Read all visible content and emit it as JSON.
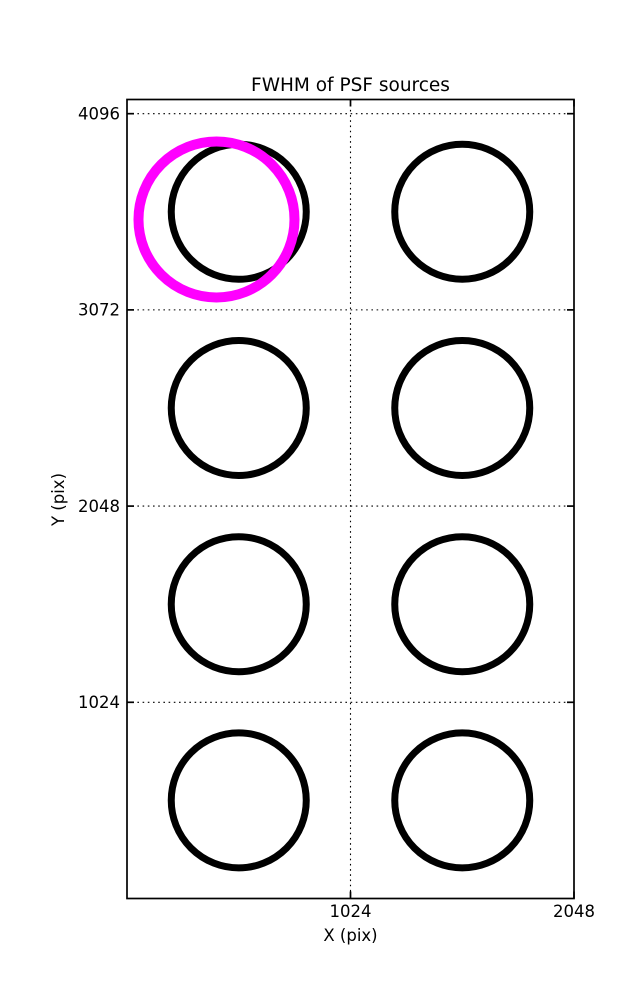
{
  "figure": {
    "background": "#ffffff"
  },
  "chart_data": {
    "type": "scatter",
    "title": "FWHM of PSF sources",
    "xlabel": "X (pix)",
    "ylabel": "Y (pix)",
    "xlim": [
      0,
      2048
    ],
    "ylim": [
      0,
      4170
    ],
    "xticks": [
      1024,
      2048
    ],
    "xtick_labels": [
      "1024",
      "2048"
    ],
    "yticks": [
      1024,
      2048,
      3072,
      4096
    ],
    "ytick_labels": [
      "1024",
      "2048",
      "3072",
      "4096"
    ],
    "grid": {
      "visible": true,
      "style": "dotted",
      "color": "#000000"
    },
    "legend_position": "none",
    "series": [
      {
        "name": "psf-sources",
        "marker": "open-circle",
        "color": "#000000",
        "marker_radius_px": 67.5,
        "stroke_width_px": 7,
        "points": [
          {
            "x": 512,
            "y": 3584
          },
          {
            "x": 1536,
            "y": 3584
          },
          {
            "x": 512,
            "y": 2560
          },
          {
            "x": 1536,
            "y": 2560
          },
          {
            "x": 512,
            "y": 1536
          },
          {
            "x": 1536,
            "y": 1536
          },
          {
            "x": 512,
            "y": 512
          },
          {
            "x": 1536,
            "y": 512
          }
        ]
      },
      {
        "name": "highlighted-source",
        "marker": "open-circle",
        "color": "#ff00ff",
        "marker_radius_px": 78,
        "stroke_width_px": 10,
        "points": [
          {
            "x": 410,
            "y": 3544
          }
        ]
      }
    ]
  },
  "colors": {
    "background": "#ffffff",
    "axis": "#000000",
    "grid": "#000000",
    "marker": "#000000",
    "highlight": "#ff00ff"
  }
}
